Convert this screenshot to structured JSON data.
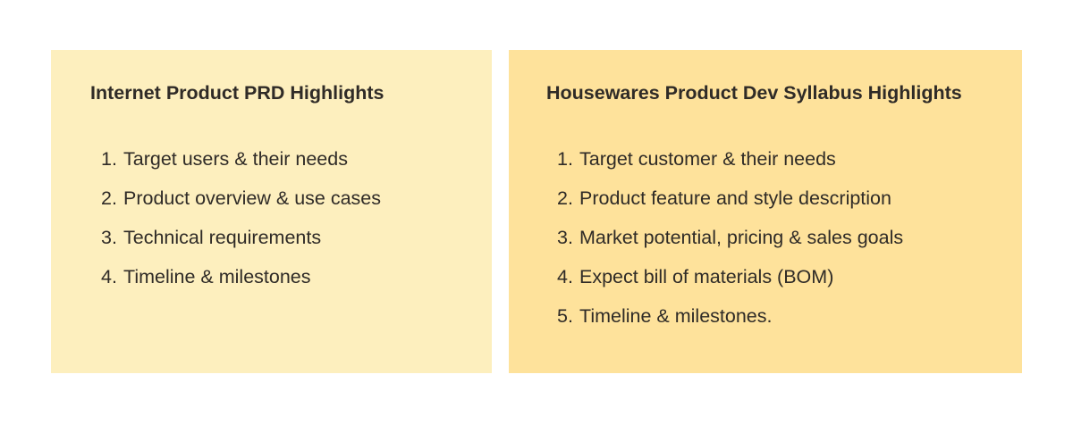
{
  "panels": [
    {
      "title": "Internet Product PRD Highlights",
      "items": [
        {
          "num": "1.",
          "text": "Target users & their needs"
        },
        {
          "num": "2.",
          "text": "Product overview & use cases"
        },
        {
          "num": "3.",
          "text": "Technical requirements"
        },
        {
          "num": "4.",
          "text": "Timeline & milestones"
        }
      ]
    },
    {
      "title": "Housewares Product Dev Syllabus Highlights",
      "items": [
        {
          "num": "1.",
          "text": "Target customer & their needs"
        },
        {
          "num": "2.",
          "text": "Product feature and style description"
        },
        {
          "num": "3.",
          "text": "Market potential, pricing & sales goals"
        },
        {
          "num": "4.",
          "text": "Expect bill of materials (BOM)"
        },
        {
          "num": "5.",
          "text": "Timeline & milestones."
        }
      ]
    }
  ],
  "colors": {
    "left_panel": "#fdefbe",
    "right_panel": "#fee29b",
    "text": "#2f2b27"
  }
}
